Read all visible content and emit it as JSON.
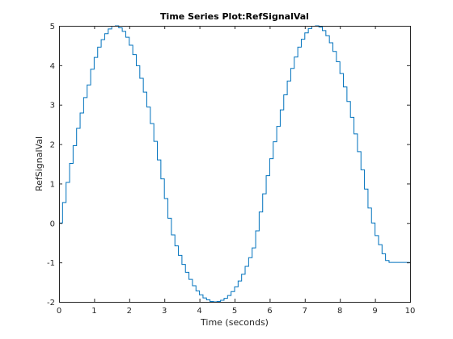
{
  "chart_data": {
    "type": "line",
    "drawstyle": "steps",
    "title": "Time Series Plot:RefSignalVal",
    "xlabel": "Time (seconds)",
    "ylabel": "RefSignalVal",
    "xlim": [
      0,
      10
    ],
    "ylim": [
      -2,
      5
    ],
    "xticks": [
      0,
      1,
      2,
      3,
      4,
      5,
      6,
      7,
      8,
      9,
      10
    ],
    "yticks": [
      -2,
      -1,
      0,
      1,
      2,
      3,
      4,
      5
    ],
    "grid": false,
    "box": true,
    "series": [
      {
        "color": "#0072bd",
        "x": [
          0,
          0.1,
          0.2,
          0.3,
          0.4,
          0.5,
          0.6,
          0.7,
          0.8,
          0.9,
          1.0,
          1.1,
          1.2,
          1.3,
          1.4,
          1.5,
          1.6,
          1.7,
          1.8,
          1.9,
          2.0,
          2.1,
          2.2,
          2.3,
          2.4,
          2.5,
          2.6,
          2.7,
          2.8,
          2.9,
          3.0,
          3.1,
          3.2,
          3.3,
          3.4,
          3.5,
          3.6,
          3.7,
          3.8,
          3.9,
          4.0,
          4.1,
          4.2,
          4.3,
          4.4,
          4.5,
          4.6,
          4.7,
          4.8,
          4.9,
          5.0,
          5.1,
          5.2,
          5.3,
          5.4,
          5.5,
          5.6,
          5.7,
          5.8,
          5.9,
          6.0,
          6.1,
          6.2,
          6.3,
          6.4,
          6.5,
          6.6,
          6.7,
          6.8,
          6.9,
          7.0,
          7.1,
          7.2,
          7.3,
          7.4,
          7.5,
          7.6,
          7.7,
          7.8,
          7.9,
          8.0,
          8.1,
          8.2,
          8.3,
          8.4,
          8.5,
          8.6,
          8.7,
          8.8,
          8.9,
          9.0,
          9.1,
          9.2,
          9.3,
          9.4,
          9.5,
          9.6,
          9.7,
          9.8,
          9.9,
          10.0
        ],
        "values": [
          0.0,
          0.52,
          1.03,
          1.51,
          1.96,
          2.4,
          2.79,
          3.18,
          3.5,
          3.9,
          4.2,
          4.46,
          4.65,
          4.8,
          4.92,
          4.99,
          5.0,
          4.95,
          4.86,
          4.71,
          4.51,
          4.27,
          3.99,
          3.67,
          3.32,
          2.94,
          2.52,
          2.07,
          1.6,
          1.12,
          0.62,
          0.12,
          -0.3,
          -0.58,
          -0.82,
          -1.05,
          -1.25,
          -1.43,
          -1.59,
          -1.72,
          -1.82,
          -1.9,
          -1.95,
          -1.99,
          -2.0,
          -1.99,
          -1.96,
          -1.91,
          -1.84,
          -1.74,
          -1.62,
          -1.47,
          -1.3,
          -1.1,
          -0.88,
          -0.63,
          -0.2,
          0.28,
          0.74,
          1.2,
          1.63,
          2.06,
          2.45,
          2.87,
          3.25,
          3.6,
          3.92,
          4.21,
          4.46,
          4.66,
          4.82,
          4.93,
          4.99,
          5.0,
          4.97,
          4.88,
          4.75,
          4.57,
          4.35,
          4.09,
          3.79,
          3.45,
          3.08,
          2.68,
          2.26,
          1.81,
          1.35,
          0.86,
          0.38,
          0.0,
          -0.32,
          -0.55,
          -0.78,
          -0.95,
          -1.0,
          -1.0,
          -1.0,
          -1.0,
          -1.0,
          -1.0,
          -1.0
        ]
      }
    ]
  }
}
